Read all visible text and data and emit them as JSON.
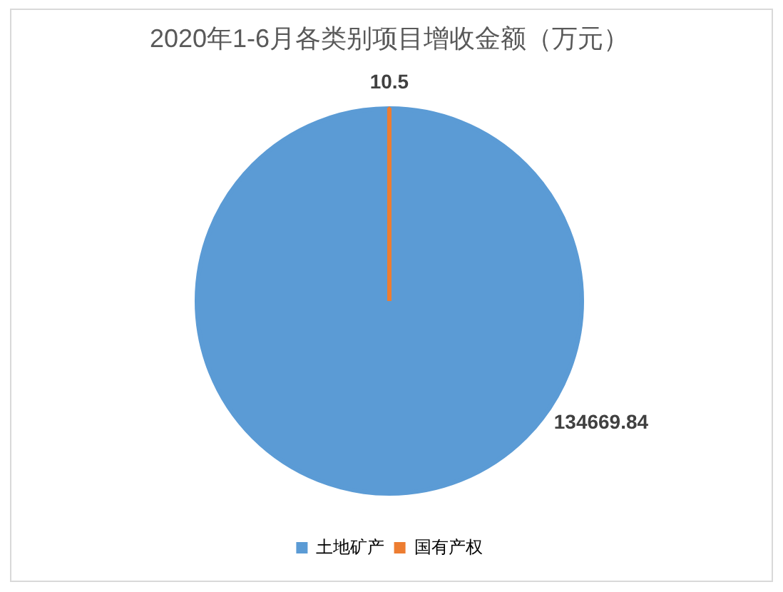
{
  "chart_data": {
    "type": "pie",
    "title": "2020年1-6月各类别项目增收金额（万元）",
    "categories": [
      "土地矿产",
      "国有产权"
    ],
    "values": [
      134669.84,
      10.5
    ],
    "colors": [
      "#5b9bd5",
      "#ed7d31"
    ],
    "data_labels": true,
    "legend": "bottom"
  }
}
